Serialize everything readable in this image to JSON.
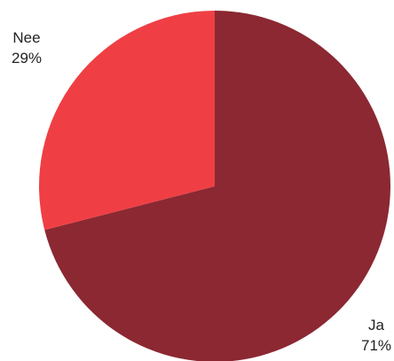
{
  "chart_data": {
    "type": "pie",
    "title": "",
    "start_angle_deg": 0,
    "direction": "clockwise",
    "slices": [
      {
        "label": "Ja",
        "value": 71,
        "display": "71%",
        "color": "#8b2832"
      },
      {
        "label": "Nee",
        "value": 29,
        "display": "29%",
        "color": "#ef3f44"
      }
    ]
  }
}
